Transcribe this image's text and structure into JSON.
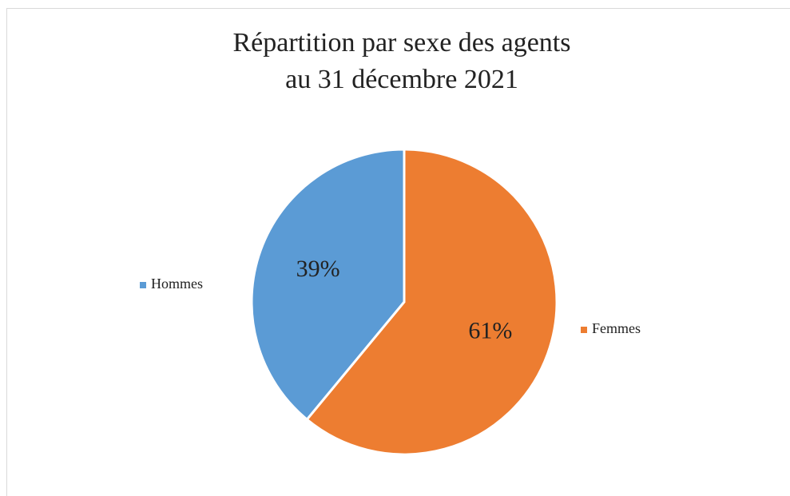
{
  "chart_data": {
    "type": "pie",
    "title": [
      "Répartition par sexe des agents",
      "au 31 décembre 2021"
    ],
    "categories": [
      "Femmes",
      "Hommes"
    ],
    "values": [
      61,
      39
    ],
    "value_labels": [
      "61%",
      "39%"
    ],
    "colors": [
      "#ed7d31",
      "#5b9bd5"
    ]
  }
}
